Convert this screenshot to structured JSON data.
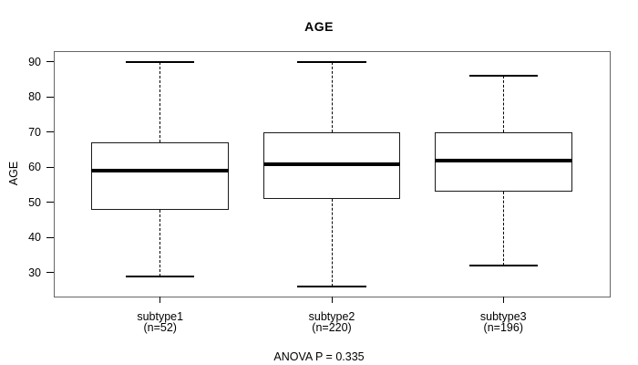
{
  "chart_data": {
    "type": "boxplot",
    "title": "AGE",
    "ylabel": "AGE",
    "annotation": "ANOVA P = 0.335",
    "ylim": [
      23.2,
      93.1
    ],
    "yticks": [
      30,
      40,
      50,
      60,
      70,
      80,
      90
    ],
    "grid": false,
    "legend": "none",
    "categories": [
      "subtype1",
      "subtype2",
      "subtype3"
    ],
    "groups": [
      {
        "label": "subtype1",
        "n_label": "(n=52)",
        "n": 52,
        "stats": {
          "whisker_low": 29,
          "q1": 48,
          "median": 59,
          "q3": 67,
          "whisker_high": 90
        }
      },
      {
        "label": "subtype2",
        "n_label": "(n=220)",
        "n": 220,
        "stats": {
          "whisker_low": 26,
          "q1": 51,
          "median": 61,
          "q3": 70,
          "whisker_high": 90
        }
      },
      {
        "label": "subtype3",
        "n_label": "(n=196)",
        "n": 196,
        "stats": {
          "whisker_low": 32,
          "q1": 53,
          "median": 62,
          "q3": 70,
          "whisker_high": 86
        }
      }
    ],
    "colors": {
      "data_lines": "#000000",
      "plot_border": "#666666",
      "text": "#000000",
      "background": "#ffffff"
    }
  }
}
